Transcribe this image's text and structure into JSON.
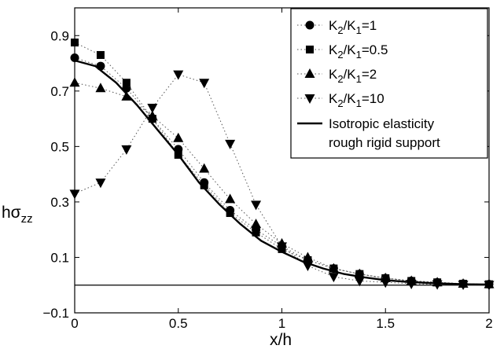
{
  "chart_data": {
    "type": "line",
    "xlabel": "x/h",
    "ylabel": {
      "base": "hσ",
      "sub": "zz"
    },
    "xlim": [
      0,
      2
    ],
    "ylim": [
      -0.1,
      1.0
    ],
    "xticks": [
      "0",
      "0.5",
      "1",
      "1.5",
      "2"
    ],
    "yticks": [
      "−0.1",
      "0.1",
      "0.3",
      "0.5",
      "0.7",
      "0.9"
    ],
    "grid": false,
    "legend_position": "top-right",
    "reference_line_y": 0,
    "series": [
      {
        "name": "K2/K1=1",
        "legend": {
          "a": "K",
          "s1": "2",
          "b": "/K",
          "s2": "1",
          "c": "=1"
        },
        "marker": "circle",
        "x": [
          0,
          0.125,
          0.25,
          0.375,
          0.5,
          0.625,
          0.75,
          0.875,
          1.0,
          1.125,
          1.25,
          1.375,
          1.5,
          1.625,
          1.75,
          1.875,
          2.0
        ],
        "y": [
          0.82,
          0.79,
          0.71,
          0.6,
          0.49,
          0.37,
          0.27,
          0.2,
          0.14,
          0.09,
          0.06,
          0.04,
          0.025,
          0.015,
          0.01,
          0.005,
          0.003
        ]
      },
      {
        "name": "K2/K1=0.5",
        "legend": {
          "a": "K",
          "s1": "2",
          "b": "/K",
          "s2": "1",
          "c": "=0.5"
        },
        "marker": "square",
        "x": [
          0,
          0.125,
          0.25,
          0.375,
          0.5,
          0.625,
          0.75,
          0.875,
          1.0,
          1.125,
          1.25,
          1.375,
          1.5,
          1.625,
          1.75,
          1.875,
          2.0
        ],
        "y": [
          0.875,
          0.83,
          0.73,
          0.6,
          0.47,
          0.36,
          0.26,
          0.19,
          0.13,
          0.09,
          0.06,
          0.04,
          0.025,
          0.015,
          0.01,
          0.005,
          0.003
        ]
      },
      {
        "name": "K2/K1=2",
        "legend": {
          "a": "K",
          "s1": "2",
          "b": "/K",
          "s2": "1",
          "c": "=2"
        },
        "marker": "triangle-up",
        "x": [
          0,
          0.125,
          0.25,
          0.375,
          0.5,
          0.625,
          0.75,
          0.875,
          1.0,
          1.125,
          1.25,
          1.375,
          1.5,
          1.625,
          1.75,
          1.875,
          2.0
        ],
        "y": [
          0.73,
          0.71,
          0.68,
          0.61,
          0.53,
          0.42,
          0.31,
          0.22,
          0.15,
          0.1,
          0.06,
          0.04,
          0.025,
          0.015,
          0.01,
          0.005,
          0.003
        ]
      },
      {
        "name": "K2/K1=10",
        "legend": {
          "a": "K",
          "s1": "2",
          "b": "/K",
          "s2": "1",
          "c": "=10"
        },
        "marker": "triangle-down",
        "x": [
          0,
          0.125,
          0.25,
          0.375,
          0.5,
          0.625,
          0.75,
          0.875,
          1.0,
          1.125,
          1.25,
          1.375,
          1.5,
          1.625,
          1.75,
          1.875,
          2.0
        ],
        "y": [
          0.33,
          0.37,
          0.49,
          0.64,
          0.76,
          0.73,
          0.51,
          0.29,
          0.14,
          0.07,
          0.03,
          0.015,
          0.01,
          0.005,
          0.003,
          0.002,
          0.001
        ]
      },
      {
        "name": "Isotropic elasticity rough rigid support",
        "legend": {
          "line1": "Isotropic elasticity",
          "line2": "rough rigid support"
        },
        "marker": "none",
        "x": [
          0,
          0.1,
          0.2,
          0.3,
          0.4,
          0.5,
          0.6,
          0.7,
          0.8,
          0.9,
          1.0,
          1.1,
          1.2,
          1.3,
          1.4,
          1.5,
          1.6,
          1.7,
          1.8,
          1.9,
          2.0
        ],
        "y": [
          0.81,
          0.79,
          0.73,
          0.65,
          0.56,
          0.47,
          0.37,
          0.29,
          0.22,
          0.16,
          0.12,
          0.085,
          0.06,
          0.04,
          0.028,
          0.018,
          0.012,
          0.008,
          0.005,
          0.003,
          0.002
        ]
      }
    ]
  }
}
